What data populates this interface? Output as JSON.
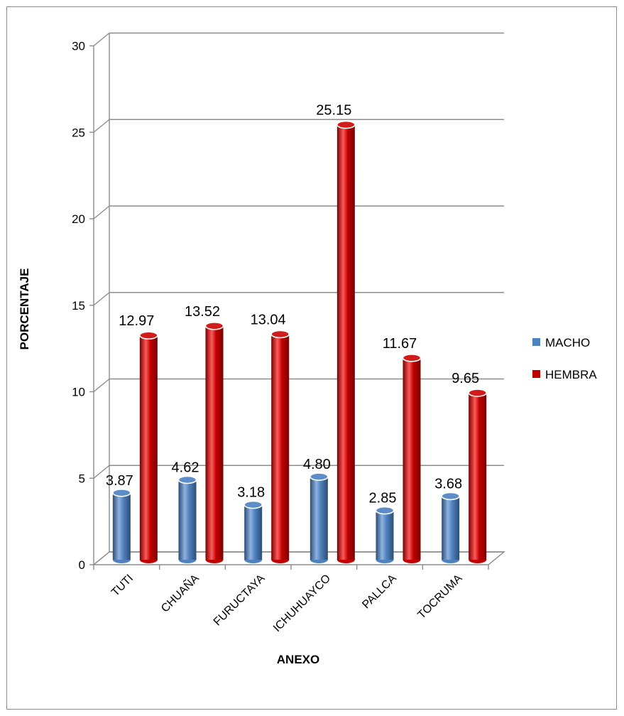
{
  "chart_data": {
    "type": "bar",
    "categories": [
      "TUTI",
      "CHUAÑA",
      "FURUCTAYA",
      "ICHUHUAYCO",
      "PALLCA",
      "TOCRUMA"
    ],
    "series": [
      {
        "name": "MACHO",
        "color": "#4f81bd",
        "values": [
          3.87,
          4.62,
          3.18,
          4.8,
          2.85,
          3.68
        ],
        "labels": [
          "3.87",
          "4.62",
          "3.18",
          "4.80",
          "2.85",
          "3.68"
        ]
      },
      {
        "name": "HEMBRA",
        "color": "#c00000",
        "values": [
          12.97,
          13.52,
          13.04,
          25.15,
          11.67,
          9.65
        ],
        "labels": [
          "12.97",
          "13.52",
          "13.04",
          "25.15",
          "11.67",
          "9.65"
        ]
      }
    ],
    "xlabel": "ANEXO",
    "ylabel": "PORCENTAJE",
    "ylim": [
      0,
      30
    ],
    "yticks": [
      0,
      5,
      10,
      15,
      20,
      25,
      30
    ],
    "grid": true,
    "legend_position": "right",
    "style": "3d-cylinder"
  }
}
